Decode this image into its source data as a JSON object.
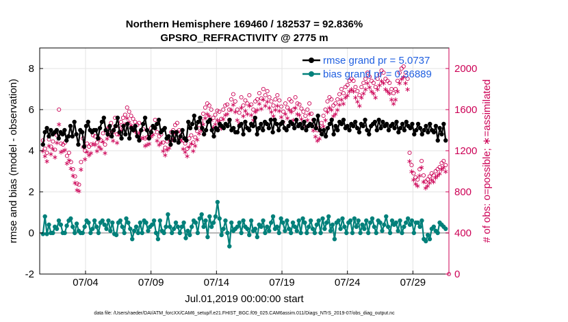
{
  "chart_data": {
    "type": "line",
    "title_line1": "Northern Hemisphere 169460 / 182537 = 92.836%",
    "title_line2": "GPSRO_REFRACTIVITY @ 2775 m",
    "xlabel": "Jul.01,2019 00:00:00 start",
    "ylabel": "rmse and bias (model - observation)",
    "y2label": "# of obs: o=possible; ∗=assimilated",
    "footnote": "data file: /Users/raeder/DAI/ATM_forcXX/CAM6_setup/f.e21.FHIST_BGC.f09_025.CAM6assim.011/Diags_NTrS_2019-07/obs_diag_output.nc",
    "xlim": [
      0.5,
      31.75
    ],
    "ylim": [
      -2,
      9
    ],
    "y2lim": [
      0,
      2200
    ],
    "x_ticks": [
      {
        "value": 4,
        "label": "07/04"
      },
      {
        "value": 9,
        "label": "07/09"
      },
      {
        "value": 14,
        "label": "07/14"
      },
      {
        "value": 19,
        "label": "07/19"
      },
      {
        "value": 24,
        "label": "07/24"
      },
      {
        "value": 29,
        "label": "07/29"
      }
    ],
    "y_ticks": [
      {
        "value": -2,
        "label": "-2"
      },
      {
        "value": 0,
        "label": "0"
      },
      {
        "value": 2,
        "label": "2"
      },
      {
        "value": 4,
        "label": "4"
      },
      {
        "value": 6,
        "label": "6"
      },
      {
        "value": 8,
        "label": "8"
      }
    ],
    "y2_ticks": [
      {
        "value": 0,
        "label": "0"
      },
      {
        "value": 400,
        "label": "400"
      },
      {
        "value": 800,
        "label": "800"
      },
      {
        "value": 1200,
        "label": "1200"
      },
      {
        "value": 1600,
        "label": "1600"
      },
      {
        "value": 2000,
        "label": "2000"
      }
    ],
    "series": [
      {
        "name": "rmse",
        "legend": "rmse grand pr = 5.0737",
        "color": "#000000",
        "values": [
          4.3,
          4.9,
          5.1,
          4.7,
          5.0,
          4.8,
          4.9,
          5.0,
          4.6,
          4.9,
          4.8,
          5.0,
          4.5,
          4.7,
          5.2,
          4.7,
          5.4,
          4.8,
          4.3,
          5.0,
          4.9,
          4.2,
          5.2,
          5.4,
          5.0,
          4.9,
          5.0,
          5.0,
          4.6,
          5.1,
          5.4,
          5.6,
          5.0,
          4.8,
          5.2,
          4.7,
          5.0,
          5.2,
          5.6,
          4.9,
          4.6,
          5.2,
          4.8,
          5.3,
          4.6,
          5.1,
          5.0,
          5.2,
          4.7,
          4.5,
          5.0,
          5.3,
          5.6,
          5.0,
          4.6,
          4.9,
          5.2,
          5.1,
          5.3,
          5.5,
          4.9,
          5.0,
          5.1,
          4.6,
          4.7,
          4.3,
          4.9,
          4.5,
          4.9,
          4.4,
          4.7,
          5.0,
          4.6,
          4.5,
          5.4,
          5.1,
          5.3,
          5.7,
          5.1,
          5.4,
          5.6,
          5.1,
          4.8,
          5.0,
          5.4,
          5.5,
          5.0,
          4.7,
          5.1,
          5.0,
          5.3,
          5.2,
          5.1,
          5.3,
          5.2,
          5.5,
          5.0,
          5.1,
          4.9,
          4.9,
          5.2,
          5.3,
          4.8,
          5.4,
          5.1,
          5.0,
          5.3,
          5.2,
          5.6,
          4.8,
          5.1,
          5.3,
          5.0,
          5.4,
          5.3,
          5.1,
          5.5,
          4.9,
          5.5,
          5.3,
          5.0,
          5.3,
          5.4,
          5.1,
          5.0,
          5.2,
          5.4,
          5.3,
          5.1,
          5.5,
          5.2,
          5.3,
          5.1,
          5.4,
          5.0,
          5.2,
          5.3,
          5.2,
          5.5,
          5.1,
          5.7,
          5.0,
          4.8,
          5.0,
          4.7,
          5.1,
          5.3,
          5.5,
          4.8,
          5.2,
          5.0,
          5.4,
          5.3,
          5.5,
          5.1,
          5.2,
          5.0,
          5.3,
          5.2,
          5.4,
          5.1,
          4.9,
          5.3,
          5.2,
          5.5,
          5.0,
          4.8,
          5.2,
          5.3,
          5.4,
          5.0,
          5.5,
          5.1,
          5.4,
          5.2,
          5.3,
          5.0,
          5.2,
          5.3,
          5.1,
          5.4,
          4.9,
          5.1,
          5.3,
          5.0,
          5.4,
          5.2,
          5.1,
          5.3,
          4.8,
          5.0,
          5.3,
          5.1,
          4.8,
          5.0,
          5.2,
          4.9,
          5.3,
          5.0,
          4.9,
          5.2,
          4.5,
          5.1,
          4.8,
          5.3,
          4.5
        ]
      },
      {
        "name": "bias",
        "legend": "bias grand pr = 0.36889",
        "color": "#00807a",
        "values": [
          -0.05,
          0.8,
          -0.05,
          0.4,
          0.0,
          0.0,
          0.3,
          0.2,
          0.6,
          0.4,
          0.0,
          0.0,
          0.35,
          0.6,
          0.7,
          0.3,
          0.0,
          0.45,
          0.1,
          0.0,
          0.0,
          0.3,
          0.6,
          0.5,
          0.0,
          0.2,
          0.6,
          0.3,
          0.0,
          0.5,
          0.6,
          0.4,
          0.2,
          0.6,
          0.1,
          0.5,
          -0.05,
          -0.1,
          0.5,
          0.6,
          0.3,
          0.0,
          0.7,
          0.5,
          0.2,
          -0.3,
          0.1,
          0.3,
          0.0,
          0.5,
          0.0,
          0.6,
          0.5,
          0.1,
          0.3,
          0.4,
          0.6,
          0.0,
          -0.3,
          0.6,
          0.1,
          0.0,
          0.3,
          0.9,
          0.3,
          0.0,
          0.2,
          0.5,
          0.3,
          0.0,
          0.3,
          0.5,
          -0.25,
          0.1,
          -0.1,
          0.3,
          0.6,
          0.5,
          0.0,
          0.7,
          0.9,
          0.3,
          0.6,
          -0.2,
          0.8,
          0.3,
          0.5,
          0.8,
          1.5,
          0.7,
          -0.1,
          0.2,
          0.6,
          0.0,
          -0.65,
          0.5,
          0.1,
          0.2,
          0.3,
          0.5,
          0.0,
          0.6,
          0.3,
          0.2,
          -0.1,
          0.6,
          0.1,
          0.2,
          -0.2,
          0.4,
          0.3,
          0.6,
          0.0,
          0.3,
          0.1,
          0.5,
          0.8,
          0.2,
          0.3,
          0.0,
          0.7,
          0.5,
          0.1,
          0.6,
          0.2,
          0.0,
          0.5,
          0.3,
          0.1,
          0.6,
          0.0,
          0.7,
          0.5,
          0.0,
          0.3,
          0.6,
          0.2,
          0.0,
          0.4,
          0.6,
          0.0,
          0.7,
          0.2,
          0.5,
          0.8,
          0.1,
          0.4,
          -0.3,
          0.5,
          0.6,
          0.2,
          0.7,
          0.3,
          0.0,
          0.5,
          0.6,
          0.0,
          0.7,
          0.3,
          0.6,
          0.0,
          0.4,
          0.2,
          0.6,
          0.0,
          0.5,
          0.7,
          0.3,
          0.0,
          0.6,
          0.5,
          0.1,
          0.4,
          0.8,
          0.3,
          0.0,
          0.6,
          0.4,
          0.5,
          0.1,
          0.6,
          0.0,
          0.3,
          0.5,
          0.7,
          0.4,
          0.6,
          0.0,
          0.5,
          0.5,
          0.3,
          0.6,
          -0.3,
          -0.4,
          -0.1,
          -0.3,
          0.2,
          0.3,
          0.1,
          0.0,
          0.5,
          0.4,
          0.3,
          0.2
        ]
      }
    ],
    "obs_possible": {
      "name": "possible",
      "marker": "circle",
      "color": "#cc0055",
      "values": [
        1300,
        1220,
        1180,
        1310,
        1240,
        1290,
        1210,
        1350,
        1600,
        1270,
        1260,
        1280,
        1150,
        1180,
        1090,
        1020,
        950,
        880,
        870,
        1090,
        1320,
        1200,
        1270,
        1240,
        1260,
        1350,
        1340,
        1280,
        1320,
        1300,
        1370,
        1260,
        1410,
        1430,
        1470,
        1380,
        1520,
        1360,
        1440,
        1480,
        1520,
        1550,
        1620,
        1580,
        1540,
        1510,
        1480,
        1450,
        1470,
        1400,
        1410,
        1320,
        1330,
        1350,
        1420,
        1440,
        1500,
        1380,
        1340,
        1360,
        1280,
        1230,
        1290,
        1310,
        1380,
        1400,
        1450,
        1470,
        1400,
        1380,
        1300,
        1270,
        1220,
        1320,
        1350,
        1280,
        1330,
        1390,
        1450,
        1490,
        1560,
        1620,
        1660,
        1640,
        1600,
        1520,
        1550,
        1590,
        1580,
        1510,
        1600,
        1640,
        1650,
        1600,
        1700,
        1750,
        1680,
        1600,
        1570,
        1720,
        1640,
        1690,
        1660,
        1740,
        1650,
        1600,
        1680,
        1700,
        1760,
        1710,
        1800,
        1740,
        1780,
        1720,
        1680,
        1640,
        1700,
        1740,
        1690,
        1630,
        1580,
        1660,
        1620,
        1700,
        1680,
        1600,
        1720,
        1660,
        1650,
        1610,
        1580,
        1540,
        1600,
        1660,
        1560,
        1500,
        1440,
        1400,
        1420,
        1470,
        1540,
        1600,
        1680,
        1720,
        1700,
        1640,
        1660,
        1700,
        1750,
        1800,
        1760,
        1820,
        1840,
        1880,
        1900,
        1880,
        1820,
        1780,
        1740,
        1820,
        1860,
        1900,
        1960,
        1920,
        1880,
        1860,
        1820,
        1900,
        1940,
        1980,
        1960,
        1900,
        1880,
        1860,
        1800,
        1760,
        1800,
        1880,
        1960,
        2000,
        2020,
        1960,
        1900,
        1180,
        1060,
        980,
        940,
        920,
        1020,
        1100,
        960,
        900,
        920,
        950,
        980,
        960,
        1000,
        1020,
        1040,
        1080,
        1100,
        1060
      ]
    },
    "obs_assimilated": {
      "name": "assimilated",
      "marker": "asterisk",
      "color": "#cc0055",
      "values": [
        1200,
        1150,
        1100,
        1250,
        1170,
        1220,
        1140,
        1280,
        1460,
        1190,
        1200,
        1210,
        1080,
        1110,
        1030,
        960,
        890,
        820,
        810,
        1020,
        1240,
        1120,
        1190,
        1160,
        1180,
        1270,
        1260,
        1200,
        1240,
        1220,
        1290,
        1180,
        1320,
        1350,
        1380,
        1300,
        1440,
        1280,
        1360,
        1400,
        1430,
        1460,
        1520,
        1480,
        1450,
        1420,
        1390,
        1360,
        1380,
        1320,
        1330,
        1250,
        1260,
        1270,
        1340,
        1360,
        1420,
        1300,
        1260,
        1280,
        1200,
        1160,
        1210,
        1230,
        1300,
        1320,
        1370,
        1390,
        1320,
        1300,
        1220,
        1190,
        1150,
        1240,
        1270,
        1200,
        1250,
        1310,
        1370,
        1400,
        1460,
        1520,
        1560,
        1540,
        1500,
        1430,
        1460,
        1500,
        1490,
        1420,
        1510,
        1550,
        1560,
        1500,
        1600,
        1650,
        1580,
        1500,
        1470,
        1620,
        1540,
        1590,
        1560,
        1640,
        1550,
        1500,
        1580,
        1600,
        1660,
        1610,
        1700,
        1640,
        1680,
        1620,
        1580,
        1540,
        1600,
        1640,
        1590,
        1530,
        1480,
        1560,
        1520,
        1600,
        1580,
        1500,
        1620,
        1560,
        1550,
        1510,
        1480,
        1440,
        1500,
        1560,
        1460,
        1400,
        1340,
        1300,
        1320,
        1370,
        1440,
        1500,
        1580,
        1620,
        1600,
        1540,
        1560,
        1600,
        1650,
        1700,
        1660,
        1720,
        1740,
        1780,
        1800,
        1780,
        1720,
        1680,
        1640,
        1720,
        1760,
        1800,
        1860,
        1820,
        1780,
        1760,
        1720,
        1800,
        1840,
        1880,
        1860,
        1800,
        1780,
        1760,
        1700,
        1660,
        1700,
        1780,
        1860,
        1900,
        1920,
        1860,
        1800,
        1100,
        1000,
        920,
        880,
        860,
        960,
        1040,
        900,
        840,
        860,
        890,
        920,
        900,
        940,
        960,
        980,
        1020,
        1040,
        1000
      ]
    }
  }
}
